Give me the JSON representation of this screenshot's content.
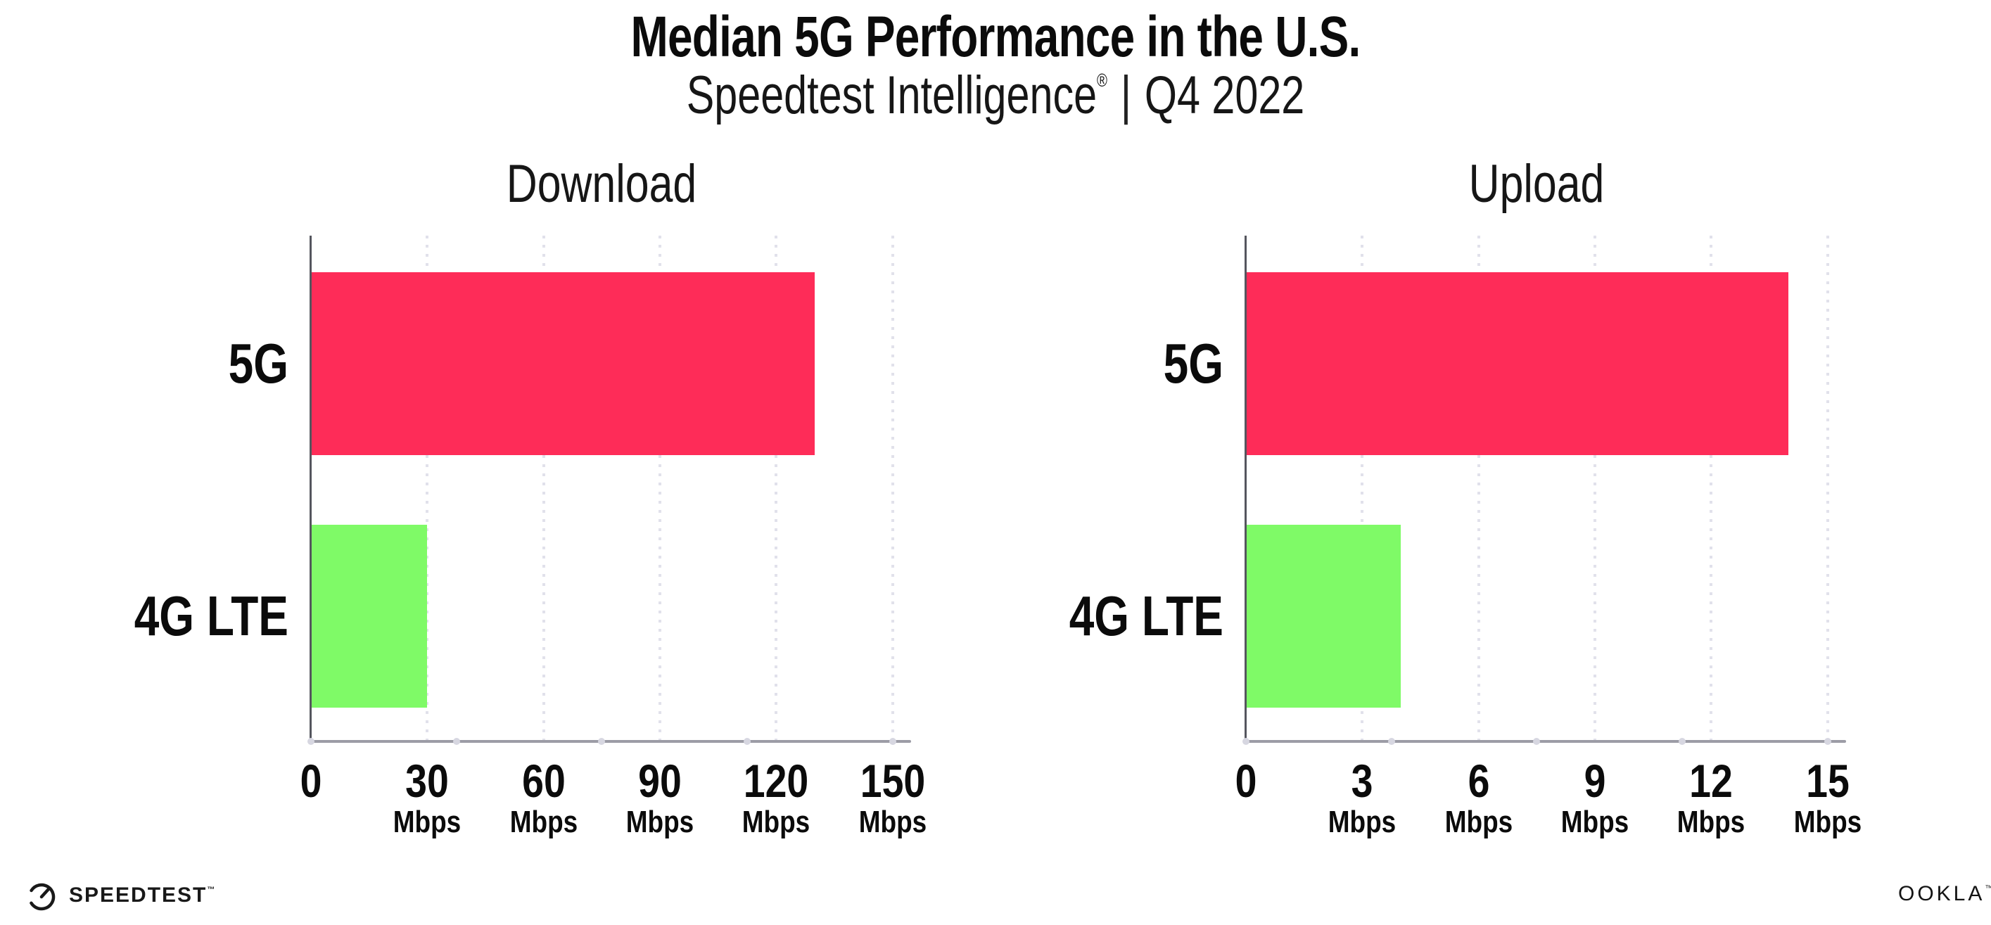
{
  "header": {
    "title": "Median 5G Performance in the U.S.",
    "subtitle_brand": "Speedtest Intelligence",
    "subtitle_reg": "®",
    "subtitle_sep": "|",
    "subtitle_period": "Q4 2022"
  },
  "colors": {
    "bar_5g": "#FE2C58",
    "bar_4g": "#7FFA67",
    "gridline_dots": "#E1E1EB",
    "x_axis_line": "#9C9CA6",
    "x_axis_dots": "#D7D7E1",
    "y_axis_line": "#55565E",
    "text": "#0B0B0B"
  },
  "chart_data": [
    {
      "type": "bar",
      "orientation": "horizontal",
      "title": "Download",
      "categories": [
        "5G",
        "4G LTE"
      ],
      "values": [
        130,
        30
      ],
      "unit": "Mbps",
      "xlabel": "",
      "ylabel": "",
      "xlim": [
        0,
        150
      ],
      "xticks": [
        0,
        30,
        60,
        90,
        120,
        150
      ],
      "bar_colors": [
        "#FE2C58",
        "#7FFA67"
      ],
      "grid": "vertical-dotted",
      "legend": "none"
    },
    {
      "type": "bar",
      "orientation": "horizontal",
      "title": "Upload",
      "categories": [
        "5G",
        "4G LTE"
      ],
      "values": [
        14,
        4
      ],
      "unit": "Mbps",
      "xlabel": "",
      "ylabel": "",
      "xlim": [
        0,
        15
      ],
      "xticks": [
        0,
        3,
        6,
        9,
        12,
        15
      ],
      "bar_colors": [
        "#FE2C58",
        "#7FFA67"
      ],
      "grid": "vertical-dotted",
      "legend": "none"
    }
  ],
  "footer": {
    "speedtest_text": "SPEEDTEST",
    "speedtest_tm": "™",
    "ookla_text": "OOKLA",
    "ookla_tm": "™"
  }
}
